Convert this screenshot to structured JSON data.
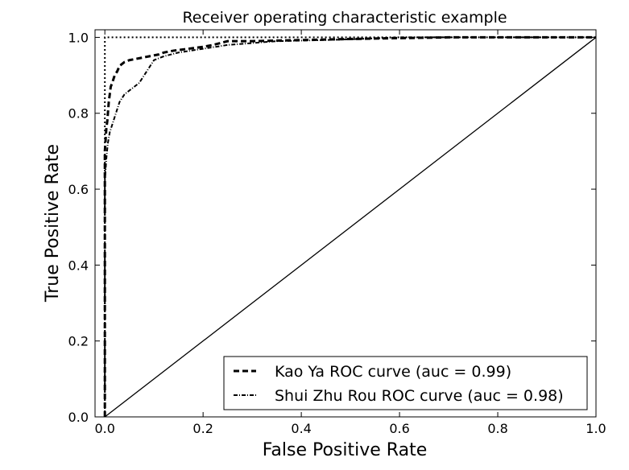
{
  "chart_data": {
    "type": "line",
    "title": "Receiver operating characteristic example",
    "xlabel": "False Positive Rate",
    "ylabel": "True Positive Rate",
    "xlim": [
      -0.02,
      1.0
    ],
    "ylim": [
      0.0,
      1.02
    ],
    "xticks": [
      "0.0",
      "0.2",
      "0.4",
      "0.6",
      "0.8",
      "1.0"
    ],
    "yticks": [
      "0.0",
      "0.2",
      "0.4",
      "0.6",
      "0.8",
      "1.0"
    ],
    "grid": false,
    "legend_position": "lower-right",
    "series": [
      {
        "name": "Kao Ya ROC curve (auc = 0.99)",
        "style": "dashed",
        "color": "#000000",
        "x": [
          0.0,
          0.0,
          0.003,
          0.005,
          0.008,
          0.012,
          0.015,
          0.02,
          0.025,
          0.03,
          0.04,
          0.05,
          0.07,
          0.09,
          0.11,
          0.12,
          0.14,
          0.17,
          0.2,
          0.22,
          0.25,
          0.3,
          0.4,
          0.55,
          0.7,
          1.0
        ],
        "y": [
          0.0,
          0.7,
          0.76,
          0.78,
          0.83,
          0.87,
          0.88,
          0.9,
          0.91,
          0.925,
          0.935,
          0.94,
          0.945,
          0.95,
          0.955,
          0.96,
          0.965,
          0.97,
          0.975,
          0.98,
          0.99,
          0.99,
          0.993,
          0.997,
          1.0,
          1.0
        ]
      },
      {
        "name": "Shui Zhu Rou ROC curve (auc = 0.98)",
        "style": "dashdot",
        "color": "#000000",
        "x": [
          0.0,
          0.0,
          0.003,
          0.006,
          0.01,
          0.015,
          0.02,
          0.03,
          0.04,
          0.05,
          0.06,
          0.07,
          0.08,
          0.09,
          0.1,
          0.12,
          0.15,
          0.2,
          0.25,
          0.3,
          0.35,
          0.45,
          0.5,
          0.6,
          1.0
        ],
        "y": [
          0.0,
          0.62,
          0.68,
          0.72,
          0.75,
          0.77,
          0.79,
          0.83,
          0.85,
          0.86,
          0.87,
          0.88,
          0.9,
          0.92,
          0.94,
          0.95,
          0.96,
          0.97,
          0.98,
          0.985,
          0.99,
          0.993,
          0.995,
          1.0,
          1.0
        ]
      },
      {
        "name": "",
        "style": "dotted",
        "color": "#000000",
        "x": [
          0.0,
          0.0,
          1.0
        ],
        "y": [
          0.0,
          1.0,
          1.0
        ]
      },
      {
        "name": "",
        "style": "solid",
        "color": "#000000",
        "x": [
          0.0,
          1.0
        ],
        "y": [
          0.0,
          1.0
        ]
      }
    ],
    "legend": [
      {
        "label": "Kao Ya ROC curve (auc = 0.99)",
        "style": "dashed"
      },
      {
        "label": "Shui Zhu Rou ROC curve (auc = 0.98)",
        "style": "dashdot"
      }
    ]
  }
}
